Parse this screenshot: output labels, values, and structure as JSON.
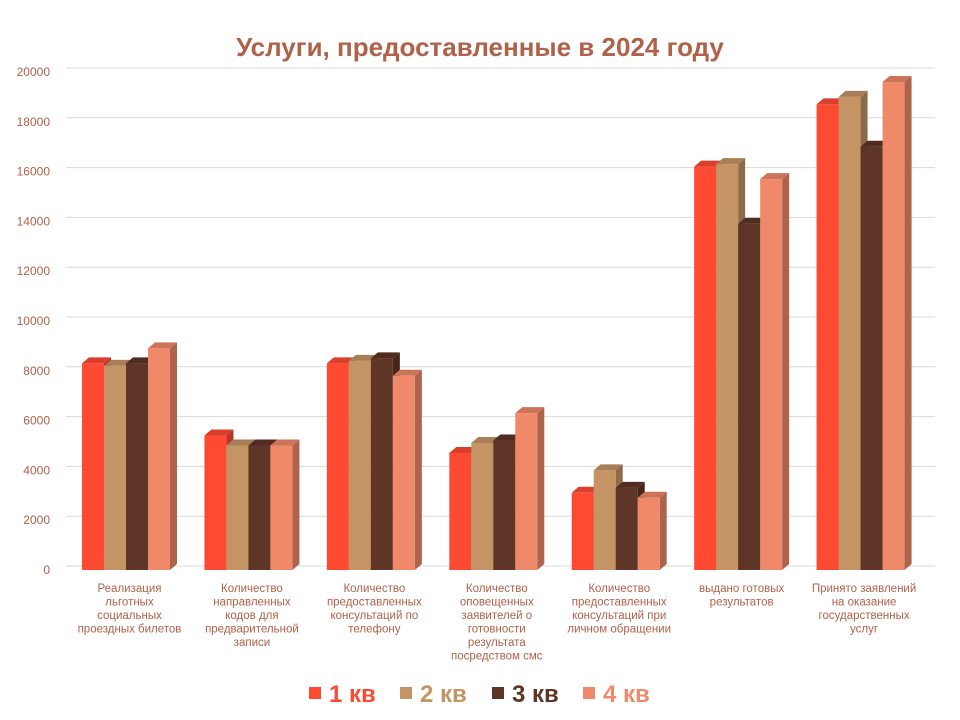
{
  "chart_data": {
    "type": "bar",
    "title": "Услуги, предоставленные в 2024 году",
    "xlabel": "",
    "ylabel": "",
    "ylim": [
      0,
      20000
    ],
    "yticks": [
      0,
      2000,
      4000,
      6000,
      8000,
      10000,
      12000,
      14000,
      16000,
      18000,
      20000
    ],
    "grid": true,
    "legend_position": "bottom",
    "categories": [
      [
        "Реализация",
        "льготных",
        "социальных",
        "проездных билетов"
      ],
      [
        "Количество",
        "направленных",
        "кодов для",
        "предварительной",
        "записи"
      ],
      [
        "Количество",
        "предоставленных",
        "консультаций   по",
        "телефону"
      ],
      [
        "Количество",
        "оповещенных",
        "заявителей о",
        "готовности",
        "результата",
        "посредством смс"
      ],
      [
        "Количество",
        "предоставленных",
        "консультаций  при",
        "личном обращении"
      ],
      [
        "выдано готовых",
        "результатов"
      ],
      [
        "Принято заявлений",
        "на оказание",
        "государственных",
        "услуг"
      ]
    ],
    "series": [
      {
        "name": "1 кв",
        "color": "#ff4a33",
        "values": [
          8300,
          5400,
          8300,
          4700,
          3100,
          16200,
          18700
        ]
      },
      {
        "name": "2 кв",
        "color": "#c49464",
        "values": [
          8200,
          5000,
          8400,
          5100,
          4000,
          16300,
          19000
        ]
      },
      {
        "name": "3 кв",
        "color": "#5e3526",
        "values": [
          8300,
          5000,
          8500,
          5200,
          3300,
          13900,
          17000
        ]
      },
      {
        "name": "4 кв",
        "color": "#f0896a",
        "values": [
          8900,
          5000,
          7800,
          6300,
          2900,
          15700,
          19600
        ]
      }
    ],
    "colors": {
      "title": "#b0614a",
      "tick_label": "#b0614a",
      "category_label": "#b0614a",
      "grid": "#d9d9d9"
    }
  }
}
